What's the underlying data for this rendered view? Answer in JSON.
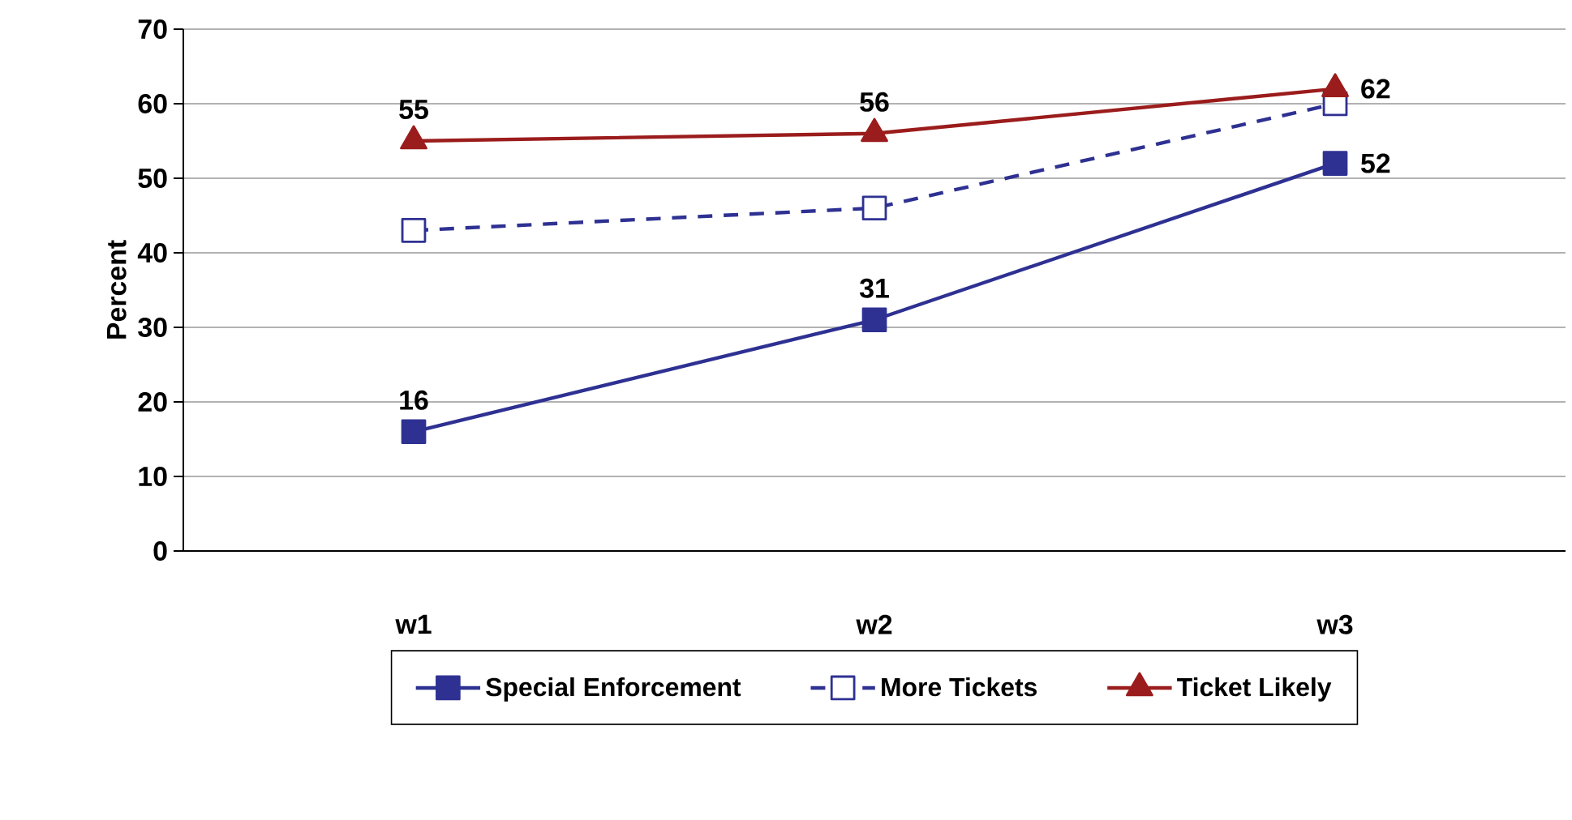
{
  "chart_data": {
    "type": "line",
    "ylabel": "Percent",
    "categories": [
      "w1",
      "w2",
      "w3"
    ],
    "ylim": [
      0,
      70
    ],
    "yticks": [
      0,
      10,
      20,
      30,
      40,
      50,
      60,
      70
    ],
    "grid": "y",
    "legend": "bottom",
    "series": [
      {
        "name": "Special Enforcement",
        "color": "#2e3192",
        "values": [
          16,
          31,
          52
        ],
        "marker": "square",
        "line_style": "solid",
        "value_labels": [
          "16",
          "31",
          "52"
        ]
      },
      {
        "name": "More Tickets",
        "color": "#2e3192",
        "values": [
          43,
          46,
          60
        ],
        "marker": "square",
        "line_style": "dashed"
      },
      {
        "name": "Ticket Likely",
        "color": "#9b1c1c",
        "values": [
          55,
          56,
          62
        ],
        "marker": "triangle",
        "line_style": "solid",
        "value_labels": [
          "55",
          "56",
          "62"
        ]
      }
    ]
  }
}
